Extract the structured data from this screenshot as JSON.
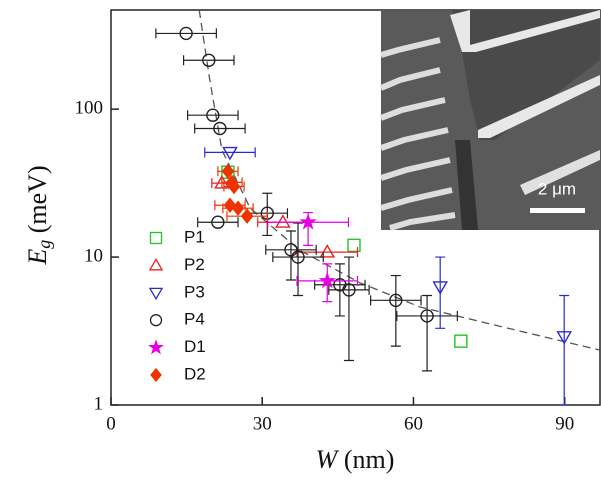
{
  "chart_data": {
    "type": "scatter",
    "xlabel": {
      "symbol": "W",
      "unit": "(nm)"
    },
    "ylabel": {
      "symbol": "E",
      "subscript": "g",
      "unit": "(meV)"
    },
    "xlim": [
      0,
      97
    ],
    "xticks": [
      0,
      30,
      60,
      90
    ],
    "ylim": [
      1,
      468
    ],
    "yticks": [
      1,
      10,
      100
    ],
    "ylog": true,
    "inset_scale_label": "2 μm",
    "legend": "lower left",
    "series": [
      {
        "name": "P1",
        "color": "#22c322",
        "marker": "square",
        "filled": false,
        "x": [
          48.2,
          69.4,
          23.2
        ],
        "values": [
          12.0,
          2.7,
          37.5
        ]
      },
      {
        "name": "P2",
        "color": "#e82020",
        "marker": "triangle",
        "filled": false,
        "x": [
          34.1,
          42.9,
          22.0
        ],
        "values": [
          17.2,
          10.8,
          31.6
        ],
        "xerr": [
          5,
          6,
          2
        ],
        "ylow": [
          null,
          null,
          null
        ],
        "yhigh": [
          null,
          null,
          null
        ]
      },
      {
        "name": "P3",
        "color": "#2a2ad0",
        "marker": "triangle-down",
        "filled": false,
        "x": [
          23.6,
          65.3,
          89.9
        ],
        "values": [
          51,
          6.3,
          2.9
        ],
        "xerr": [
          5,
          null,
          null
        ],
        "ylow": [
          null,
          3.3,
          1
        ],
        "yhigh": [
          null,
          10,
          5.5
        ]
      },
      {
        "name": "P4",
        "color": "#222222",
        "marker": "circle",
        "filled": false,
        "x": [
          14.9,
          19.4,
          20.2,
          21.6,
          21.2,
          31.0,
          35.7,
          37.1,
          45.4,
          47.2,
          56.5,
          62.7
        ],
        "values": [
          325,
          214,
          91,
          74,
          17.2,
          19.8,
          11.2,
          10.0,
          6.5,
          6.0,
          5.1,
          4.0
        ],
        "xerr": [
          6,
          5,
          5,
          5,
          4,
          4,
          5,
          5,
          5,
          4,
          5,
          6
        ],
        "ylow": [
          null,
          null,
          null,
          null,
          null,
          14,
          7,
          5.5,
          4,
          2,
          2.5,
          1.7
        ],
        "yhigh": [
          null,
          null,
          null,
          null,
          null,
          27,
          15,
          17,
          9,
          10,
          7.5,
          5.5
        ]
      },
      {
        "name": "D1",
        "color": "#e600e6",
        "marker": "star",
        "filled": true,
        "x": [
          39.1,
          42.9
        ],
        "values": [
          17.2,
          6.9
        ],
        "xerr": [
          8,
          6
        ],
        "ylow": [
          12,
          5
        ],
        "yhigh": [
          20,
          9
        ]
      },
      {
        "name": "D2",
        "color": "#ee3300",
        "marker": "diamond",
        "filled": true,
        "x": [
          23.2,
          24.0,
          24.4,
          23.6,
          25.2,
          27.0
        ],
        "values": [
          38,
          32,
          30,
          22.4,
          21.4,
          18.9
        ],
        "xerr": [
          2,
          2,
          2,
          3,
          3,
          4
        ],
        "ylow": [
          null,
          null,
          null,
          null,
          null,
          null
        ],
        "yhigh": [
          null,
          null,
          null,
          null,
          null,
          null
        ]
      }
    ],
    "fit": {
      "color": "#555555",
      "dashed": true,
      "x": [
        17.5,
        19.6,
        22,
        27.6,
        37.5,
        49.4,
        61.3,
        77.2,
        97
      ],
      "values": [
        468,
        157,
        53,
        21.4,
        11.1,
        6.7,
        4.6,
        3.4,
        2.35
      ]
    }
  }
}
